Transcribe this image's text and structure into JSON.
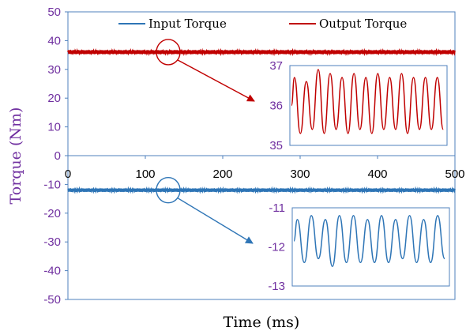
{
  "chart_data": {
    "type": "line",
    "title": "",
    "xlabel": "Time (ms)",
    "ylabel": "Torque (Nm)",
    "xlim": [
      0,
      500
    ],
    "ylim": [
      -50,
      50
    ],
    "x_ticks": [
      "0",
      "100",
      "200",
      "300",
      "400",
      "500"
    ],
    "y_ticks": [
      "50",
      "40",
      "30",
      "20",
      "10",
      "0",
      "-10",
      "-20",
      "-30",
      "-40",
      "-50"
    ],
    "legend_position": "top",
    "series": [
      {
        "name": "Input Torque",
        "color": "#2e75b6",
        "mean": -12,
        "amplitude": 0.6
      },
      {
        "name": "Output Torque",
        "color": "#c00000",
        "mean": 36,
        "amplitude": 0.7
      }
    ],
    "insets": [
      {
        "series": "Output Torque",
        "color": "#c00000",
        "ylim": [
          35,
          37
        ],
        "y_ticks": [
          "37",
          "36",
          "35"
        ],
        "peaks": [
          36.7,
          36.6,
          36.9,
          36.8,
          36.7,
          36.8,
          36.7,
          36.8,
          36.7,
          36.8,
          36.7,
          36.7,
          36.7
        ],
        "troughs": [
          35.3,
          35.4,
          35.3,
          35.4,
          35.3,
          35.4,
          35.3,
          35.4,
          35.4,
          35.3,
          35.4,
          35.4,
          35.4
        ]
      },
      {
        "series": "Input Torque",
        "color": "#2e75b6",
        "ylim": [
          -13,
          -11
        ],
        "y_ticks": [
          "-11",
          "-12",
          "-13"
        ],
        "peaks": [
          -11.3,
          -11.2,
          -11.3,
          -11.2,
          -11.2,
          -11.3,
          -11.2,
          -11.3,
          -11.2,
          -11.3,
          -11.2
        ],
        "troughs": [
          -12.4,
          -12.3,
          -12.5,
          -12.4,
          -12.4,
          -12.4,
          -12.4,
          -12.3,
          -12.4,
          -12.4,
          -12.3
        ]
      }
    ]
  }
}
